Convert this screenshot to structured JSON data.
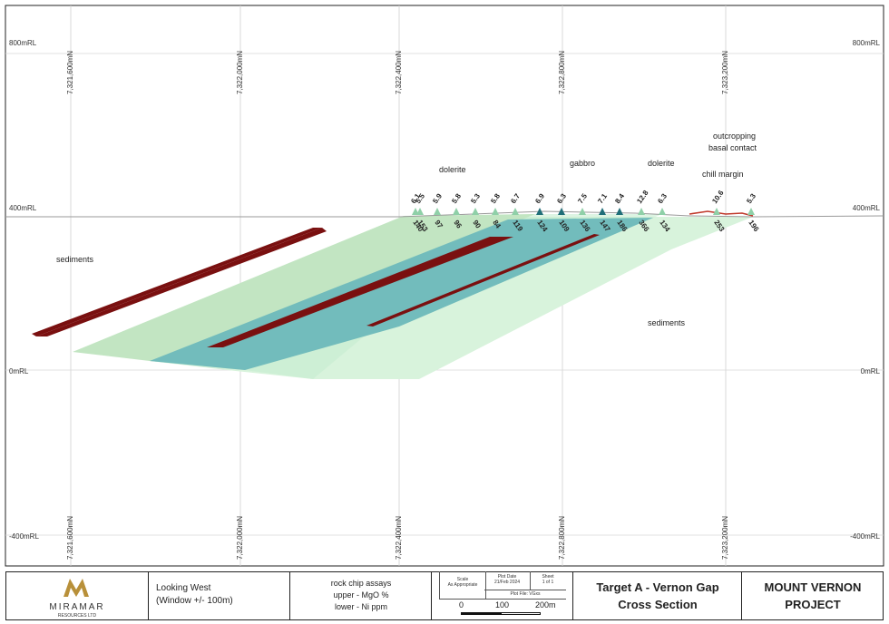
{
  "section": {
    "northings": [
      "7,321,600mN",
      "7,322,000mN",
      "7,322,400mN",
      "7,322,800mN",
      "7,323,200mN"
    ],
    "rl_levels": [
      "800mRL",
      "400mRL",
      "0mRL",
      "-400mRL"
    ],
    "labels": {
      "sediments_left": "sediments",
      "sediments_right": "sediments",
      "dolerite_left": "dolerite",
      "gabbro": "gabbro",
      "dolerite_right": "dolerite",
      "chill_margin": "chill margin",
      "outcropping_1": "outcropping",
      "outcropping_2": "basal contact"
    },
    "colors": {
      "dolerite_fill": "#c2e5c2",
      "gabbro_fill": "#72bcbc",
      "sediment_fill": "#d8f3dc",
      "ultramafic_band": "#7a1010",
      "marker_light": "#8fd0a8",
      "marker_dark": "#1f6e78"
    },
    "samples": [
      {
        "mgo": "6.1",
        "ni": "140"
      },
      {
        "mgo": "5.5",
        "ni": "153"
      },
      {
        "mgo": "5.9",
        "ni": "97"
      },
      {
        "mgo": "5.8",
        "ni": "96"
      },
      {
        "mgo": "5.3",
        "ni": "90"
      },
      {
        "mgo": "5.8",
        "ni": "84"
      },
      {
        "mgo": "6.7",
        "ni": "119"
      },
      {
        "mgo": "6.9",
        "ni": "124"
      },
      {
        "mgo": "6.3",
        "ni": "109"
      },
      {
        "mgo": "7.5",
        "ni": "136"
      },
      {
        "mgo": "7.1",
        "ni": "147"
      },
      {
        "mgo": "8.4",
        "ni": "186"
      },
      {
        "mgo": "12.8",
        "ni": "366"
      },
      {
        "mgo": "6.3",
        "ni": "134"
      },
      {
        "mgo": "10.6",
        "ni": "253"
      },
      {
        "mgo": "5.3",
        "ni": "196"
      }
    ]
  },
  "title_block": {
    "company_name": "MIRAMAR",
    "company_sub": "RESOURCES LTD",
    "view_line1": "Looking West",
    "view_line2": "(Window +/- 100m)",
    "legend_line1": "rock chip assays",
    "legend_line2": "upper - MgO %",
    "legend_line3": "lower - Ni ppm",
    "scale_label": "Scale",
    "scale_value": "As Appropriate",
    "plot_date_label": "Plot Date",
    "plot_date_value": "21/Feb 2024",
    "sheet_label": "Sheet",
    "sheet_value": "1 of 1",
    "plot_file_label": "Plot File: VGxs",
    "scalebar_0": "0",
    "scalebar_100": "100",
    "scalebar_200": "200m",
    "drawing_title_1": "Target A - Vernon Gap",
    "drawing_title_2": "Cross Section",
    "project_1": "MOUNT VERNON",
    "project_2": "PROJECT"
  }
}
